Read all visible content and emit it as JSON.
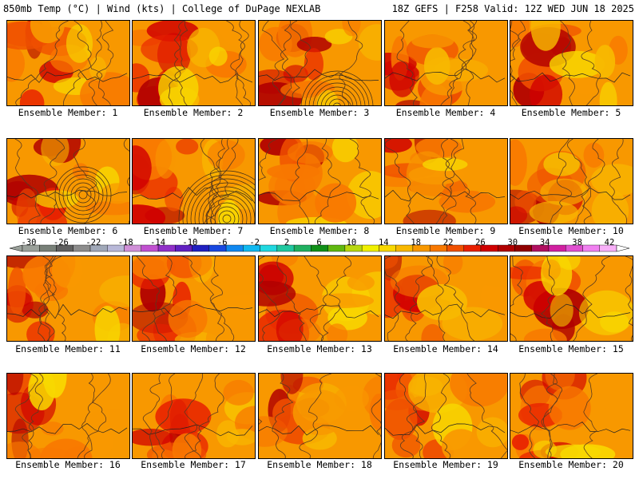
{
  "header": {
    "left": "850mb Temp (°C) | Wind (kts) | College of DuPage NEXLAB",
    "right": "18Z GEFS | F258 Valid: 12Z WED JUN 18 2025"
  },
  "members": [
    {
      "label": "Ensemble Member: 1"
    },
    {
      "label": "Ensemble Member: 2"
    },
    {
      "label": "Ensemble Member: 3"
    },
    {
      "label": "Ensemble Member: 4"
    },
    {
      "label": "Ensemble Member: 5"
    },
    {
      "label": "Ensemble Member: 6"
    },
    {
      "label": "Ensemble Member: 7"
    },
    {
      "label": "Ensemble Member: 8"
    },
    {
      "label": "Ensemble Member: 9"
    },
    {
      "label": "Ensemble Member: 10"
    },
    {
      "label": "Ensemble Member: 11"
    },
    {
      "label": "Ensemble Member: 12"
    },
    {
      "label": "Ensemble Member: 13"
    },
    {
      "label": "Ensemble Member: 14"
    },
    {
      "label": "Ensemble Member: 15"
    },
    {
      "label": "Ensemble Member: 16"
    },
    {
      "label": "Ensemble Member: 17"
    },
    {
      "label": "Ensemble Member: 18"
    },
    {
      "label": "Ensemble Member: 19"
    },
    {
      "label": "Ensemble Member: 20"
    }
  ],
  "colorbar": {
    "labels": [
      "-30",
      "-26",
      "-22",
      "-18",
      "-14",
      "-10",
      "-6",
      "-2",
      "2",
      "6",
      "10",
      "14",
      "18",
      "22",
      "26",
      "30",
      "34",
      "38",
      "42"
    ],
    "colors": [
      "#9aa09a",
      "#788078",
      "#606060",
      "#8c8c8c",
      "#a0a8b8",
      "#b8b8d8",
      "#d090d8",
      "#c050d0",
      "#9030c8",
      "#6020c0",
      "#2020c0",
      "#1848e0",
      "#1088f0",
      "#10b8f0",
      "#20d8e0",
      "#20c8a0",
      "#20b060",
      "#109018",
      "#60b810",
      "#b8d810",
      "#f0f000",
      "#f8d800",
      "#f8b800",
      "#f89800",
      "#f87800",
      "#f05000",
      "#e82000",
      "#d00000",
      "#b00000",
      "#900000",
      "#b01060",
      "#d020a0",
      "#e050d0",
      "#f080f0",
      "#f8b0f8"
    ]
  }
}
